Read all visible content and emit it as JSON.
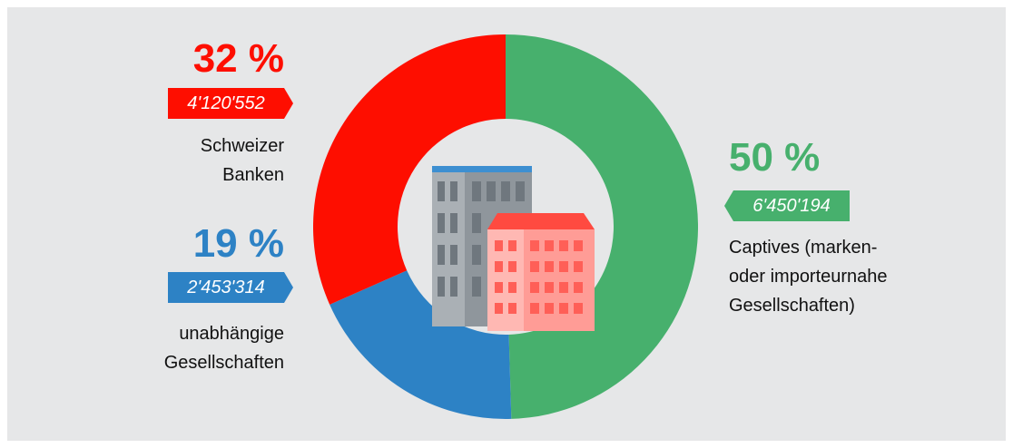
{
  "chart_data": {
    "type": "donut",
    "categories": [
      "Captives (marken-\noder importeurnahe\nGesellschaften)",
      "unabhängige\nGesellschaften",
      "Schweizer\nBanken"
    ],
    "values": [
      6450194,
      2453314,
      4120552
    ],
    "value_labels": [
      "6'450'194",
      "2'453'314",
      "4'120'552"
    ],
    "percent_labels": [
      "50 %",
      "19 %",
      "32 %"
    ],
    "colors": [
      "#47b06d",
      "#2d82c5",
      "#fe0e00"
    ]
  }
}
